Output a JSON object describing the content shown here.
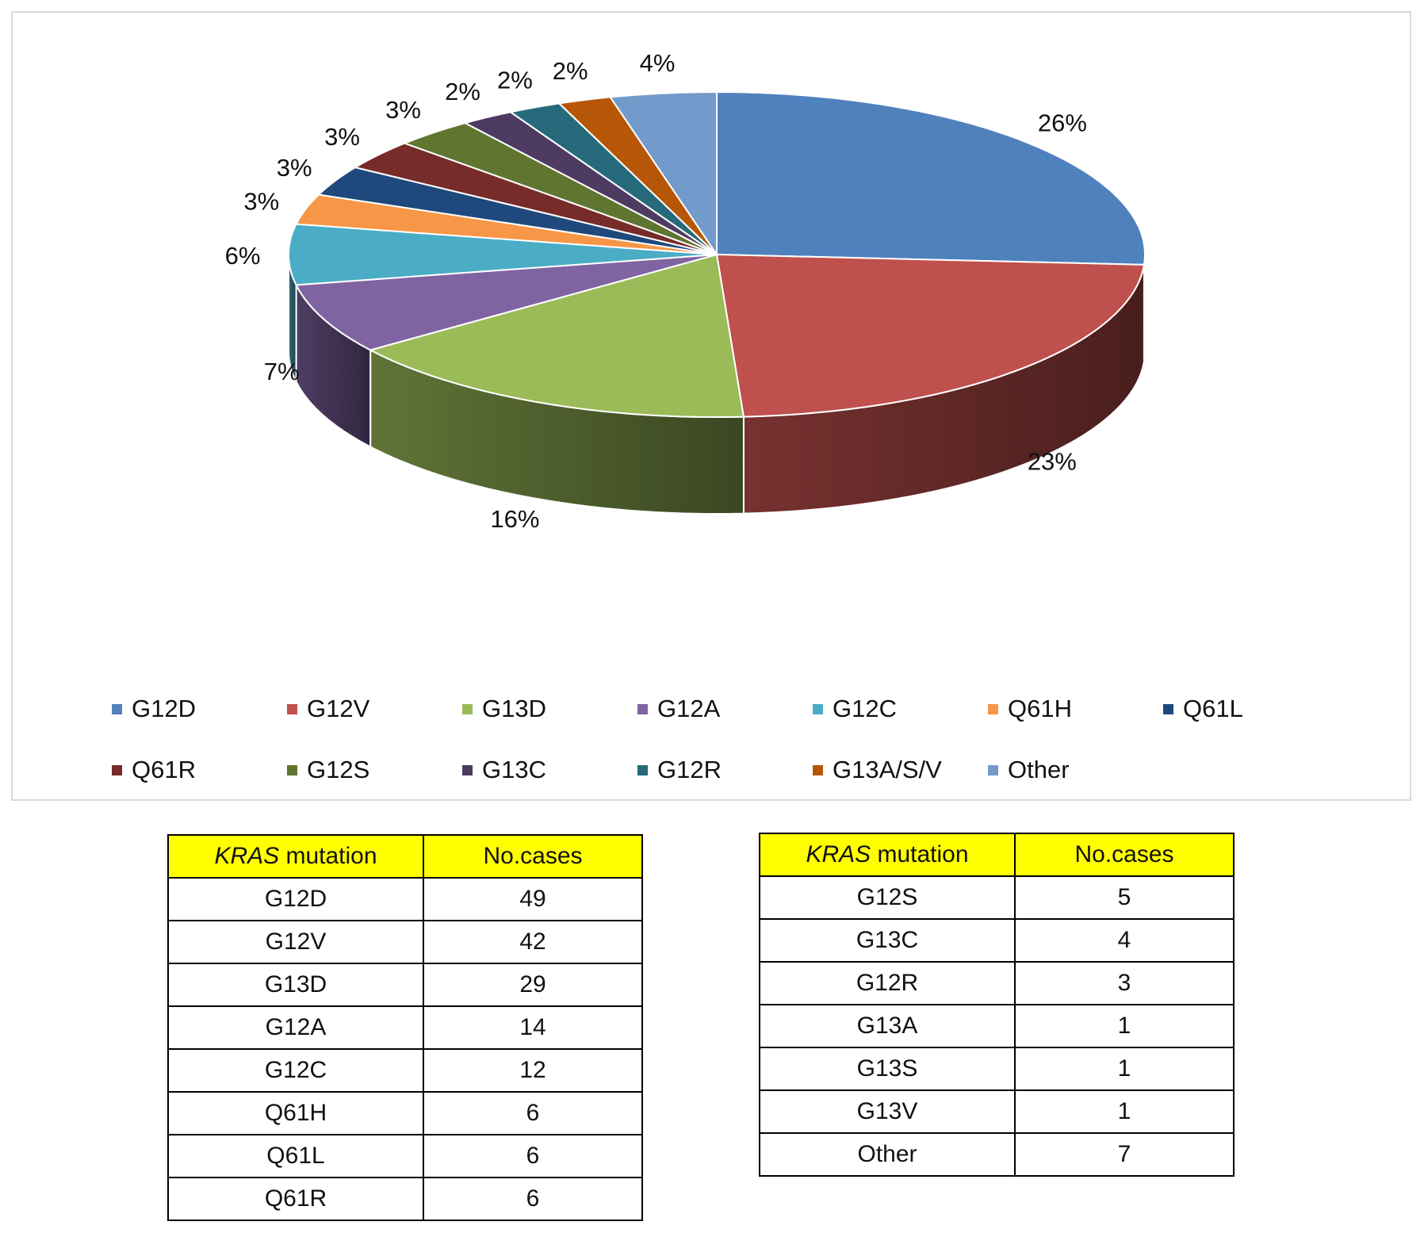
{
  "chart_data": {
    "type": "pie",
    "style": "3d",
    "slices": [
      {
        "label": "G12D",
        "value": 26,
        "color": "#4f81bd"
      },
      {
        "label": "G12V",
        "value": 23,
        "color": "#c0504d"
      },
      {
        "label": "G13D",
        "value": 16,
        "color": "#9bbb59"
      },
      {
        "label": "G12A",
        "value": 7,
        "color": "#8064a2"
      },
      {
        "label": "G12C",
        "value": 6,
        "color": "#4bacc6"
      },
      {
        "label": "Q61H",
        "value": 3,
        "color": "#f79646"
      },
      {
        "label": "Q61L",
        "value": 3,
        "color": "#1f497d"
      },
      {
        "label": "Q61R",
        "value": 3,
        "color": "#772c2a"
      },
      {
        "label": "G12S",
        "value": 3,
        "color": "#5f7530"
      },
      {
        "label": "G13C",
        "value": 2,
        "color": "#4d3b62"
      },
      {
        "label": "G12R",
        "value": 2,
        "color": "#276a7c"
      },
      {
        "label": "G13A/S/V",
        "value": 2,
        "color": "#b65708"
      },
      {
        "label": "Other",
        "value": 4,
        "color": "#729aca"
      }
    ],
    "data_labels": [
      "26%",
      "23%",
      "16%",
      "7%",
      "6%",
      "3%",
      "3%",
      "3%",
      "3%",
      "2%",
      "2%",
      "2%",
      "4%"
    ],
    "legend_position": "bottom"
  },
  "tables": [
    {
      "header": {
        "mutation_italic": "KRAS",
        "mutation_rest": " mutation",
        "cases": "No.cases"
      },
      "rows": [
        {
          "mutation": "G12D",
          "cases": "49"
        },
        {
          "mutation": "G12V",
          "cases": "42"
        },
        {
          "mutation": "G13D",
          "cases": "29"
        },
        {
          "mutation": "G12A",
          "cases": "14"
        },
        {
          "mutation": "G12C",
          "cases": "12"
        },
        {
          "mutation": "Q61H",
          "cases": "6"
        },
        {
          "mutation": "Q61L",
          "cases": "6"
        },
        {
          "mutation": "Q61R",
          "cases": "6"
        }
      ]
    },
    {
      "header": {
        "mutation_italic": "KRAS",
        "mutation_rest": " mutation",
        "cases": "No.cases"
      },
      "rows": [
        {
          "mutation": "G12S",
          "cases": "5"
        },
        {
          "mutation": "G13C",
          "cases": "4"
        },
        {
          "mutation": "G12R",
          "cases": "3"
        },
        {
          "mutation": "G13A",
          "cases": "1"
        },
        {
          "mutation": "G13S",
          "cases": "1"
        },
        {
          "mutation": "G13V",
          "cases": "1"
        },
        {
          "mutation": "Other",
          "cases": "7"
        }
      ]
    }
  ]
}
